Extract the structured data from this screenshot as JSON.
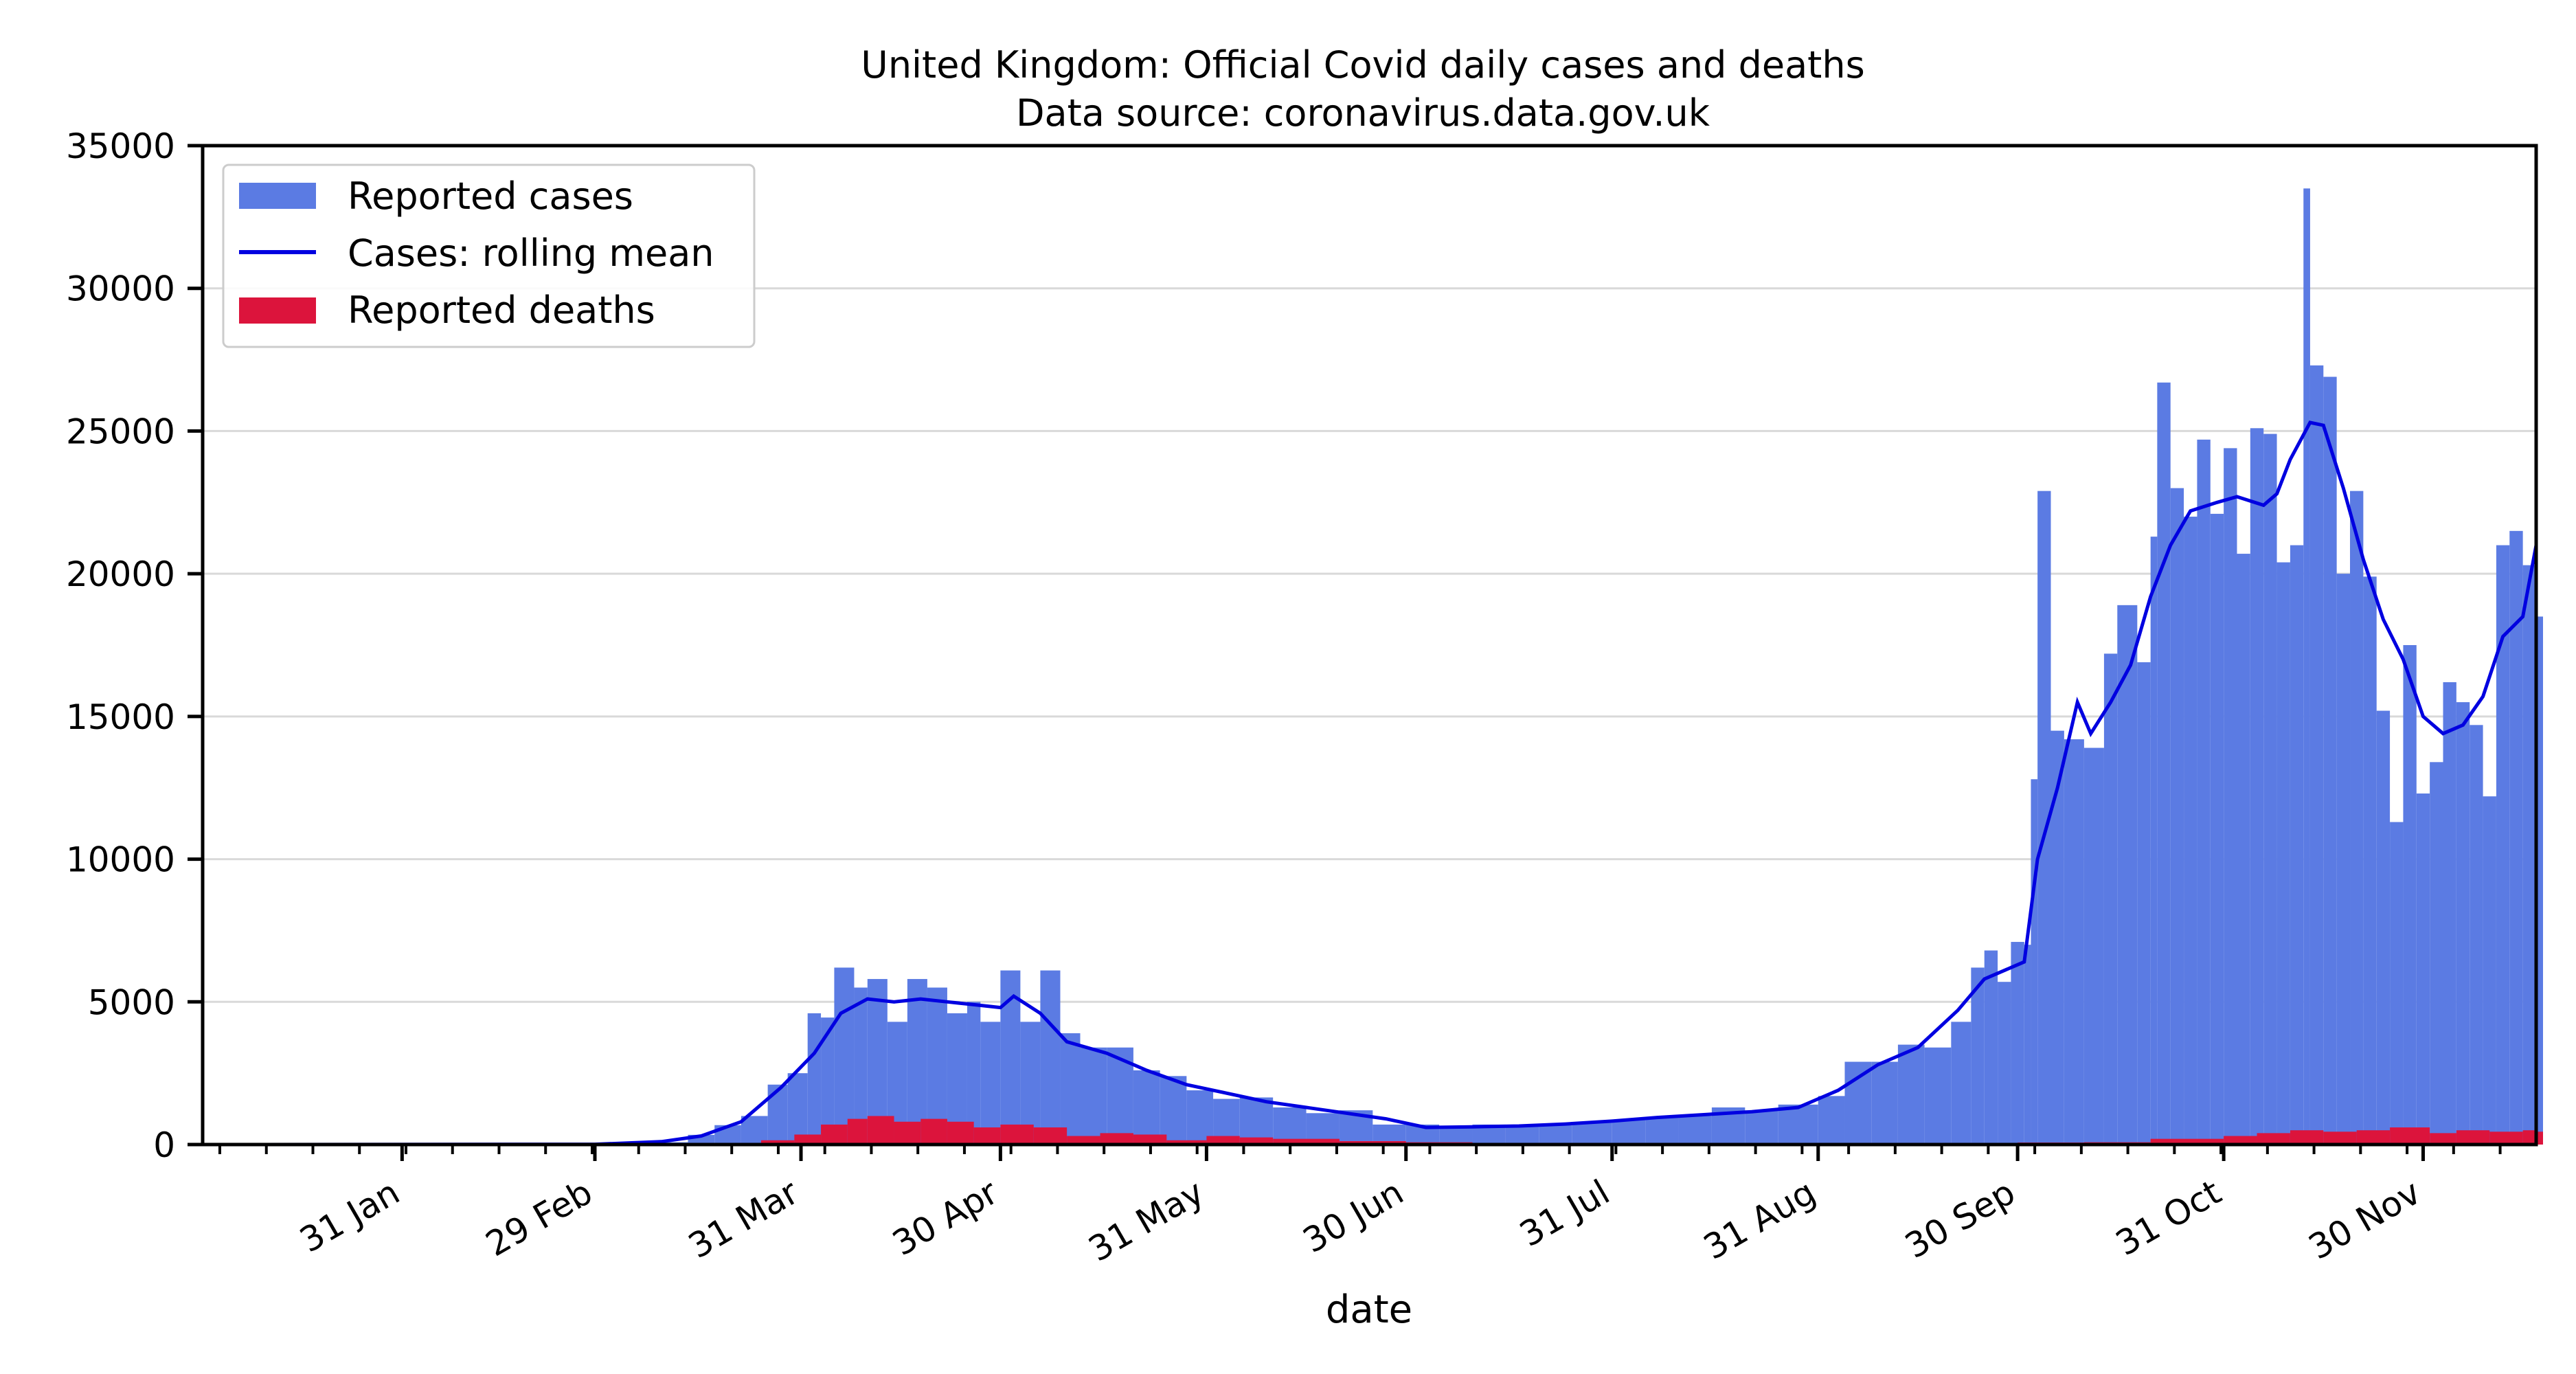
{
  "chart_data": {
    "type": "bar",
    "title": "United Kingdom: Official Covid daily cases and deaths",
    "subtitle": "Data source: coronavirus.data.gov.uk",
    "xlabel": "date",
    "ylabel": "",
    "x_range": [
      "2020-01-01",
      "2020-12-17"
    ],
    "ylim": [
      0,
      35000
    ],
    "y_ticks": [
      0,
      5000,
      10000,
      15000,
      20000,
      25000,
      30000,
      35000
    ],
    "x_ticks": [
      {
        "date": "2020-01-31",
        "label": "31 Jan"
      },
      {
        "date": "2020-02-29",
        "label": "29 Feb"
      },
      {
        "date": "2020-03-31",
        "label": "31 Mar"
      },
      {
        "date": "2020-04-30",
        "label": "30 Apr"
      },
      {
        "date": "2020-05-31",
        "label": "31 May"
      },
      {
        "date": "2020-06-30",
        "label": "30 Jun"
      },
      {
        "date": "2020-07-31",
        "label": "31 Jul"
      },
      {
        "date": "2020-08-31",
        "label": "31 Aug"
      },
      {
        "date": "2020-09-30",
        "label": "30 Sep"
      },
      {
        "date": "2020-10-31",
        "label": "31 Oct"
      },
      {
        "date": "2020-11-30",
        "label": "30 Nov"
      }
    ],
    "grid": "horizontal",
    "legend_position": "top-left",
    "series": [
      {
        "name": "Reported cases",
        "kind": "bar",
        "color": "#5b7be3",
        "points": [
          [
            "2020-01-31",
            2
          ],
          [
            "2020-02-15",
            1
          ],
          [
            "2020-02-29",
            12
          ],
          [
            "2020-03-05",
            45
          ],
          [
            "2020-03-10",
            80
          ],
          [
            "2020-03-14",
            340
          ],
          [
            "2020-03-18",
            680
          ],
          [
            "2020-03-22",
            1000
          ],
          [
            "2020-03-26",
            2100
          ],
          [
            "2020-03-29",
            2500
          ],
          [
            "2020-04-01",
            4600
          ],
          [
            "2020-04-03",
            4450
          ],
          [
            "2020-04-05",
            6200
          ],
          [
            "2020-04-08",
            5500
          ],
          [
            "2020-04-10",
            5800
          ],
          [
            "2020-04-13",
            4300
          ],
          [
            "2020-04-16",
            5800
          ],
          [
            "2020-04-19",
            5500
          ],
          [
            "2020-04-22",
            4600
          ],
          [
            "2020-04-25",
            5000
          ],
          [
            "2020-04-27",
            4300
          ],
          [
            "2020-04-30",
            6100
          ],
          [
            "2020-05-03",
            4300
          ],
          [
            "2020-05-06",
            6100
          ],
          [
            "2020-05-09",
            3900
          ],
          [
            "2020-05-12",
            3400
          ],
          [
            "2020-05-16",
            3400
          ],
          [
            "2020-05-20",
            2600
          ],
          [
            "2020-05-24",
            2400
          ],
          [
            "2020-05-28",
            1900
          ],
          [
            "2020-06-01",
            1600
          ],
          [
            "2020-06-05",
            1650
          ],
          [
            "2020-06-10",
            1300
          ],
          [
            "2020-06-15",
            1100
          ],
          [
            "2020-06-20",
            1200
          ],
          [
            "2020-06-25",
            700
          ],
          [
            "2020-06-30",
            700
          ],
          [
            "2020-07-05",
            600
          ],
          [
            "2020-07-10",
            700
          ],
          [
            "2020-07-15",
            650
          ],
          [
            "2020-07-20",
            700
          ],
          [
            "2020-07-25",
            780
          ],
          [
            "2020-07-31",
            870
          ],
          [
            "2020-08-05",
            950
          ],
          [
            "2020-08-10",
            1000
          ],
          [
            "2020-08-15",
            1300
          ],
          [
            "2020-08-20",
            1200
          ],
          [
            "2020-08-25",
            1400
          ],
          [
            "2020-08-31",
            1700
          ],
          [
            "2020-09-04",
            2900
          ],
          [
            "2020-09-08",
            2900
          ],
          [
            "2020-09-12",
            3500
          ],
          [
            "2020-09-16",
            3400
          ],
          [
            "2020-09-20",
            4300
          ],
          [
            "2020-09-23",
            6200
          ],
          [
            "2020-09-25",
            6800
          ],
          [
            "2020-09-27",
            5700
          ],
          [
            "2020-09-29",
            7100
          ],
          [
            "2020-10-01",
            7000
          ],
          [
            "2020-10-02",
            12800
          ],
          [
            "2020-10-03",
            22900
          ],
          [
            "2020-10-05",
            14500
          ],
          [
            "2020-10-07",
            14200
          ],
          [
            "2020-10-10",
            13900
          ],
          [
            "2020-10-13",
            17200
          ],
          [
            "2020-10-15",
            18900
          ],
          [
            "2020-10-18",
            16900
          ],
          [
            "2020-10-20",
            21300
          ],
          [
            "2020-10-21",
            26700
          ],
          [
            "2020-10-23",
            23000
          ],
          [
            "2020-10-25",
            22000
          ],
          [
            "2020-10-27",
            24700
          ],
          [
            "2020-10-29",
            22100
          ],
          [
            "2020-10-31",
            24400
          ],
          [
            "2020-11-02",
            20700
          ],
          [
            "2020-11-04",
            25100
          ],
          [
            "2020-11-06",
            24900
          ],
          [
            "2020-11-08",
            20400
          ],
          [
            "2020-11-10",
            21000
          ],
          [
            "2020-11-12",
            33500
          ],
          [
            "2020-11-13",
            27300
          ],
          [
            "2020-11-15",
            26900
          ],
          [
            "2020-11-17",
            20000
          ],
          [
            "2020-11-19",
            22900
          ],
          [
            "2020-11-21",
            19900
          ],
          [
            "2020-11-23",
            15200
          ],
          [
            "2020-11-25",
            11300
          ],
          [
            "2020-11-27",
            17500
          ],
          [
            "2020-11-29",
            12300
          ],
          [
            "2020-12-01",
            13400
          ],
          [
            "2020-12-03",
            16200
          ],
          [
            "2020-12-05",
            15500
          ],
          [
            "2020-12-07",
            14700
          ],
          [
            "2020-12-09",
            12200
          ],
          [
            "2020-12-11",
            21000
          ],
          [
            "2020-12-13",
            21500
          ],
          [
            "2020-12-15",
            20300
          ],
          [
            "2020-12-17",
            18500
          ]
        ]
      },
      {
        "name": "Cases: rolling mean",
        "kind": "line",
        "color": "#0000e0",
        "points": [
          [
            "2020-01-01",
            0
          ],
          [
            "2020-02-29",
            10
          ],
          [
            "2020-03-10",
            100
          ],
          [
            "2020-03-16",
            300
          ],
          [
            "2020-03-22",
            800
          ],
          [
            "2020-03-28",
            2000
          ],
          [
            "2020-04-02",
            3200
          ],
          [
            "2020-04-06",
            4600
          ],
          [
            "2020-04-10",
            5100
          ],
          [
            "2020-04-14",
            5000
          ],
          [
            "2020-04-18",
            5100
          ],
          [
            "2020-04-22",
            5000
          ],
          [
            "2020-04-26",
            4900
          ],
          [
            "2020-04-30",
            4800
          ],
          [
            "2020-05-02",
            5200
          ],
          [
            "2020-05-06",
            4600
          ],
          [
            "2020-05-10",
            3600
          ],
          [
            "2020-05-16",
            3200
          ],
          [
            "2020-05-22",
            2600
          ],
          [
            "2020-05-28",
            2100
          ],
          [
            "2020-06-03",
            1800
          ],
          [
            "2020-06-09",
            1500
          ],
          [
            "2020-06-15",
            1300
          ],
          [
            "2020-06-21",
            1100
          ],
          [
            "2020-06-27",
            900
          ],
          [
            "2020-07-03",
            600
          ],
          [
            "2020-07-10",
            620
          ],
          [
            "2020-07-17",
            650
          ],
          [
            "2020-07-24",
            720
          ],
          [
            "2020-07-31",
            820
          ],
          [
            "2020-08-07",
            950
          ],
          [
            "2020-08-14",
            1050
          ],
          [
            "2020-08-21",
            1150
          ],
          [
            "2020-08-28",
            1300
          ],
          [
            "2020-09-03",
            1900
          ],
          [
            "2020-09-09",
            2800
          ],
          [
            "2020-09-15",
            3400
          ],
          [
            "2020-09-21",
            4700
          ],
          [
            "2020-09-25",
            5800
          ],
          [
            "2020-09-29",
            6200
          ],
          [
            "2020-10-01",
            6400
          ],
          [
            "2020-10-03",
            10000
          ],
          [
            "2020-10-06",
            12500
          ],
          [
            "2020-10-09",
            15500
          ],
          [
            "2020-10-11",
            14400
          ],
          [
            "2020-10-14",
            15500
          ],
          [
            "2020-10-17",
            16800
          ],
          [
            "2020-10-20",
            19200
          ],
          [
            "2020-10-23",
            21000
          ],
          [
            "2020-10-26",
            22200
          ],
          [
            "2020-10-30",
            22500
          ],
          [
            "2020-11-02",
            22700
          ],
          [
            "2020-11-06",
            22400
          ],
          [
            "2020-11-08",
            22800
          ],
          [
            "2020-11-10",
            24000
          ],
          [
            "2020-11-13",
            25300
          ],
          [
            "2020-11-15",
            25200
          ],
          [
            "2020-11-18",
            23000
          ],
          [
            "2020-11-21",
            20500
          ],
          [
            "2020-11-24",
            18400
          ],
          [
            "2020-11-27",
            17000
          ],
          [
            "2020-11-30",
            15000
          ],
          [
            "2020-12-03",
            14400
          ],
          [
            "2020-12-06",
            14700
          ],
          [
            "2020-12-09",
            15700
          ],
          [
            "2020-12-12",
            17800
          ],
          [
            "2020-12-15",
            18500
          ],
          [
            "2020-12-17",
            21000
          ]
        ]
      },
      {
        "name": "Reported deaths",
        "kind": "bar",
        "color": "#dc143c",
        "points": [
          [
            "2020-03-15",
            5
          ],
          [
            "2020-03-20",
            40
          ],
          [
            "2020-03-25",
            150
          ],
          [
            "2020-03-30",
            350
          ],
          [
            "2020-04-03",
            700
          ],
          [
            "2020-04-07",
            900
          ],
          [
            "2020-04-10",
            1000
          ],
          [
            "2020-04-14",
            800
          ],
          [
            "2020-04-18",
            900
          ],
          [
            "2020-04-22",
            800
          ],
          [
            "2020-04-26",
            600
          ],
          [
            "2020-04-30",
            700
          ],
          [
            "2020-05-05",
            600
          ],
          [
            "2020-05-10",
            300
          ],
          [
            "2020-05-15",
            400
          ],
          [
            "2020-05-20",
            350
          ],
          [
            "2020-05-25",
            150
          ],
          [
            "2020-05-31",
            300
          ],
          [
            "2020-06-05",
            250
          ],
          [
            "2020-06-10",
            200
          ],
          [
            "2020-06-20",
            120
          ],
          [
            "2020-06-30",
            80
          ],
          [
            "2020-07-10",
            50
          ],
          [
            "2020-07-20",
            30
          ],
          [
            "2020-07-31",
            20
          ],
          [
            "2020-08-15",
            15
          ],
          [
            "2020-08-31",
            10
          ],
          [
            "2020-09-15",
            25
          ],
          [
            "2020-09-30",
            70
          ],
          [
            "2020-10-10",
            80
          ],
          [
            "2020-10-20",
            200
          ],
          [
            "2020-10-31",
            300
          ],
          [
            "2020-11-05",
            400
          ],
          [
            "2020-11-10",
            500
          ],
          [
            "2020-11-15",
            450
          ],
          [
            "2020-11-20",
            500
          ],
          [
            "2020-11-25",
            600
          ],
          [
            "2020-12-01",
            400
          ],
          [
            "2020-12-05",
            500
          ],
          [
            "2020-12-10",
            450
          ],
          [
            "2020-12-15",
            500
          ],
          [
            "2020-12-17",
            450
          ]
        ]
      }
    ]
  }
}
